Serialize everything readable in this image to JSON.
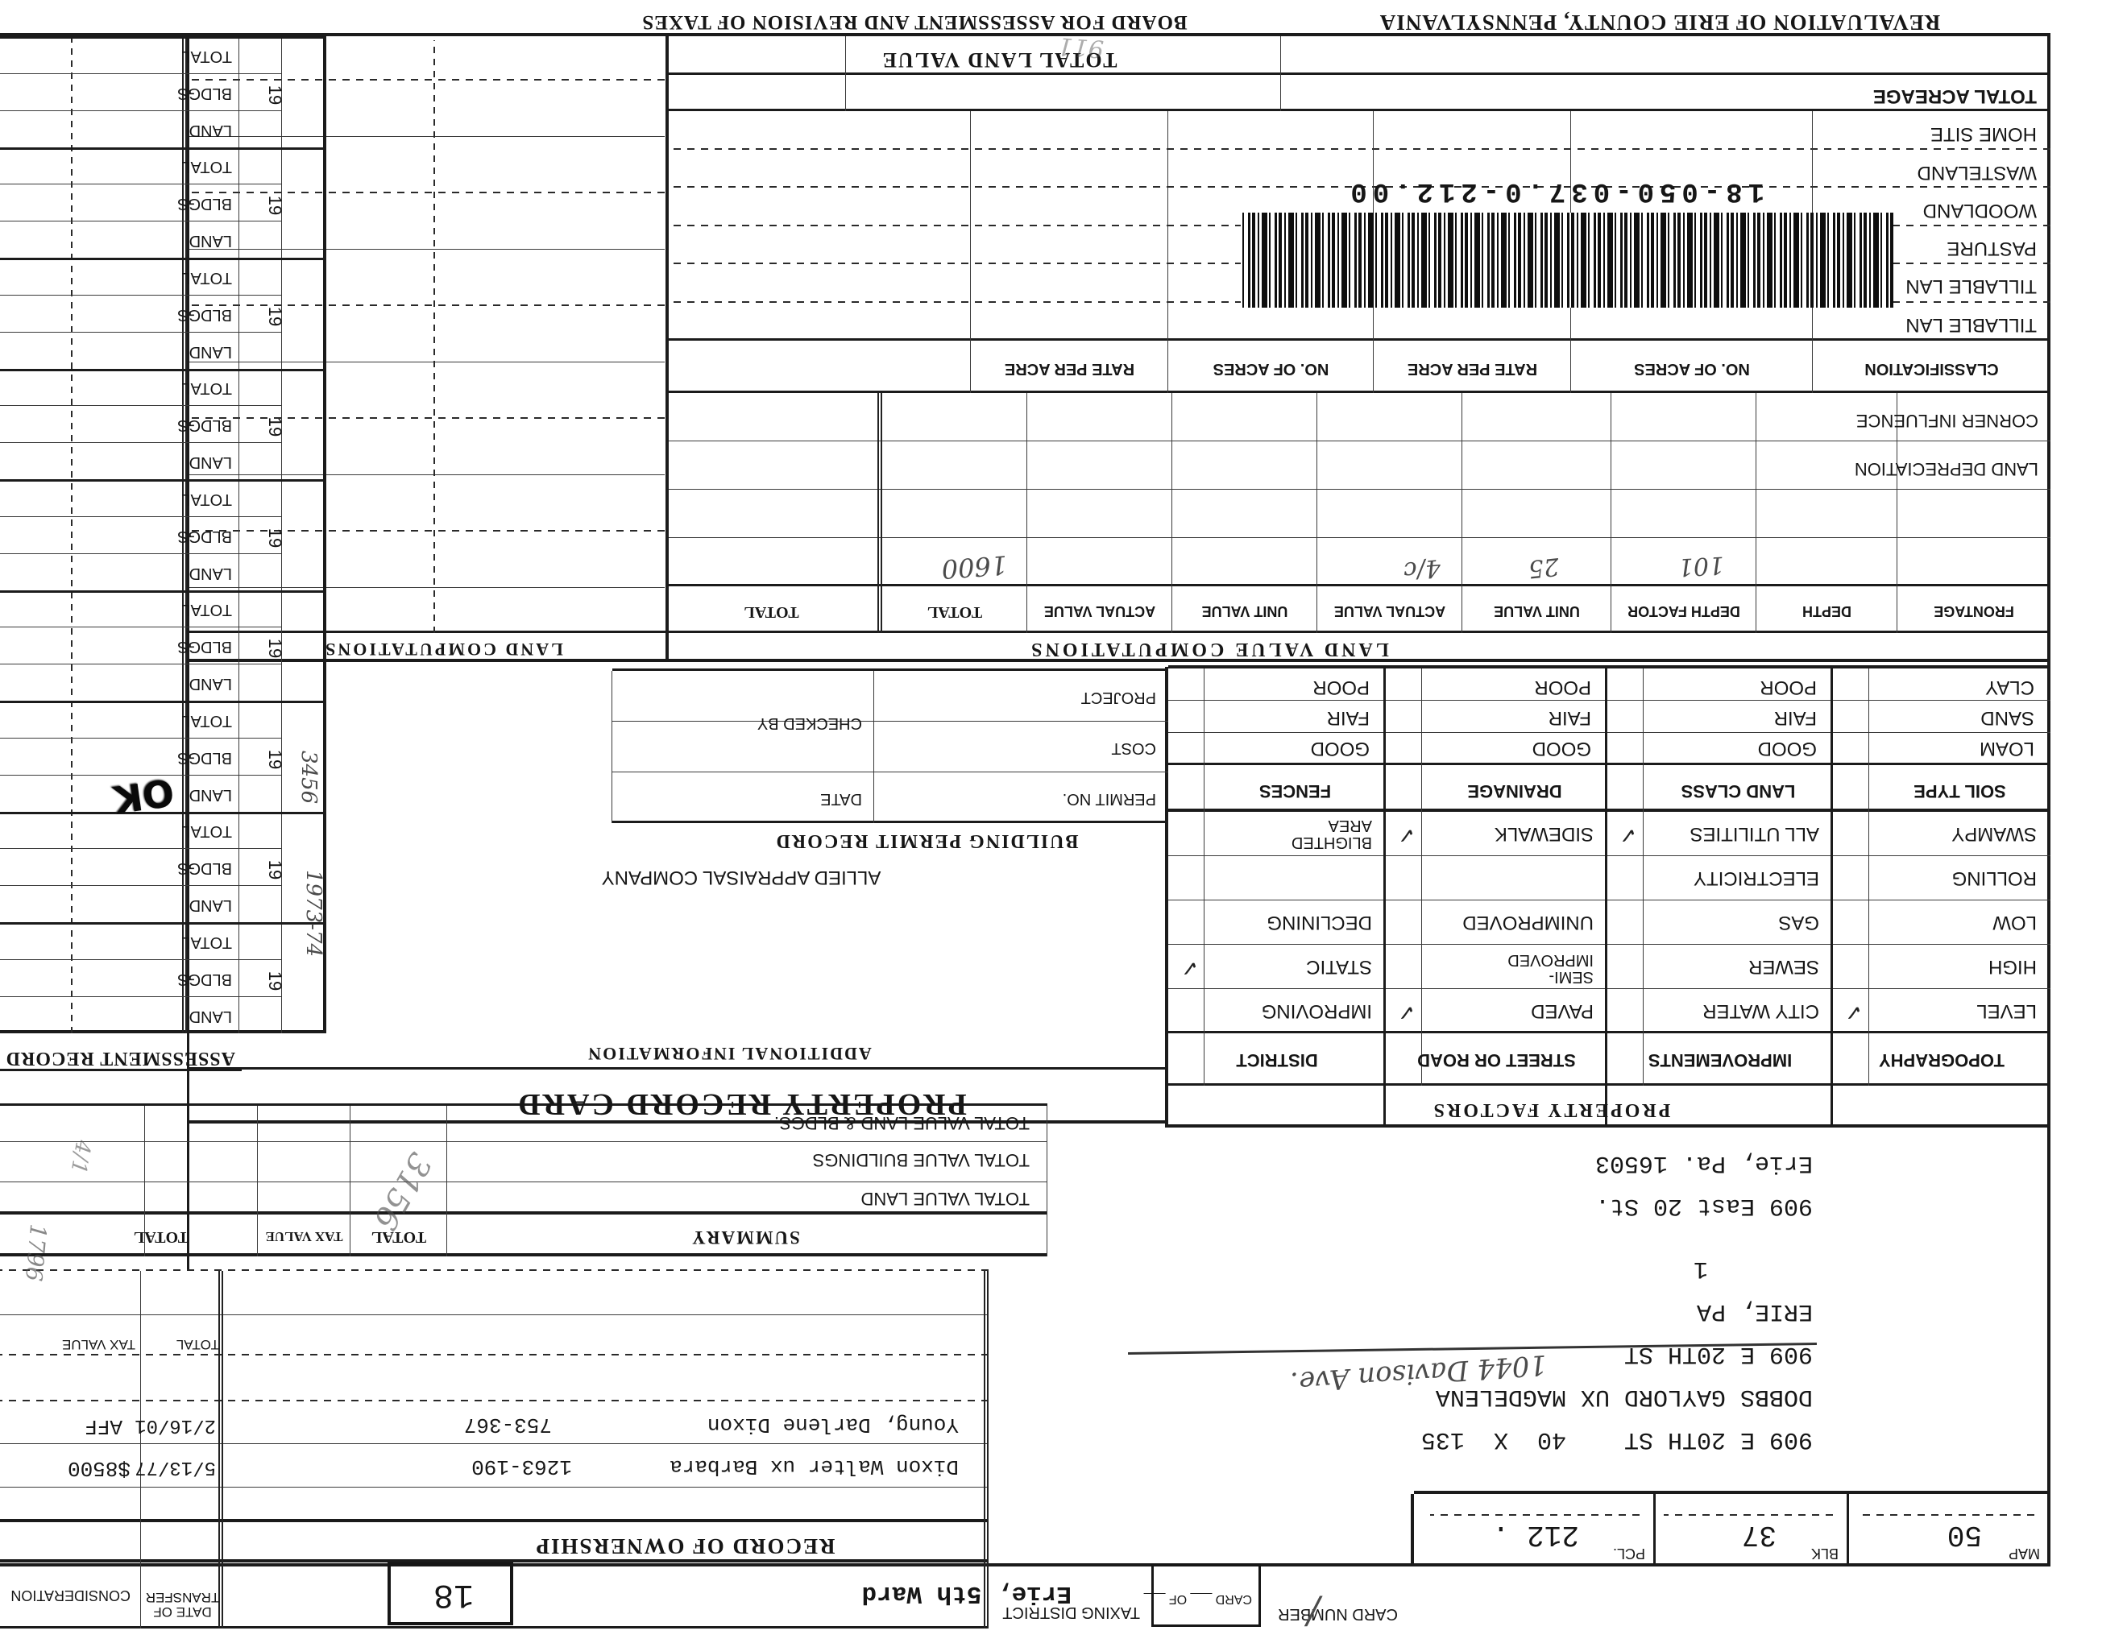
{
  "footer": {
    "left": "REVALUATION OF ERIE COUNTY, PENNSYLVANIA",
    "right": "BOARD FOR ASSESSMENT AND REVISION OF TAXES",
    "pencil_scribble": "911"
  },
  "top": {
    "card_number_label": "CARD NUMBER",
    "card_number_mark": "/",
    "card_label": "CARD",
    "of_label": "OF",
    "taxing_district_label": "TAXING DISTRICT",
    "taxing_district_value": "Erie, 5th Ward",
    "district_stamp": "18"
  },
  "parcel": {
    "map_label": "MAP",
    "map": "50",
    "blk_label": "BLK",
    "blk": "37",
    "pcl_label": "PCL.",
    "pcl": "212 ."
  },
  "owner": {
    "line1": "909 E 20TH ST    40  X  135",
    "line2": "DOBBS GAYLORD UX MAGDELENA",
    "line3": "909 E 20TH ST",
    "line3_note": "1044 Davison Ave.",
    "line4": "ERIE, PA",
    "line5": "1",
    "line6": "909 East 20 St.",
    "line7": "Erie, Pa. 16503"
  },
  "ownership": {
    "title": "RECORD OF OWNERSHIP",
    "date_label": "DATE OF\nTRANSFER",
    "consideration_label": "CONSIDERATION",
    "sub_total_label": "TOTAL",
    "sub_tax_label": "TAX VALUE",
    "rows": [
      {
        "name": "Dixon Walter ux Barbara",
        "book": "1263-190",
        "date": "5/13/77",
        "consideration": "$8500"
      },
      {
        "name": "Young, Darlene Dixon",
        "book": "753-367",
        "date": "2/16/01",
        "consideration": "AFF"
      }
    ]
  },
  "summary": {
    "title": "SUMMARY",
    "col_total": "TOTAL",
    "col_tax": "TAX VALUE",
    "col_total2": "TOTAL",
    "rows": [
      "TOTAL VALUE LAND",
      "TOTAL VALUE BUILDINGS",
      "TOTAL VALUE LAND & BLDGS."
    ],
    "pencil_total": "3156"
  },
  "factors": {
    "title": "PROPERTY FACTORS",
    "headers": [
      "TOPOGRAPHY",
      "IMPROVEMENTS",
      "STREET OR ROAD",
      "DISTRICT"
    ],
    "rows": [
      [
        {
          "l": "LEVEL",
          "c": "✓"
        },
        {
          "l": "CITY WATER",
          "c": ""
        },
        {
          "l": "PAVED",
          "c": "✓"
        },
        {
          "l": "IMPROVING",
          "c": ""
        }
      ],
      [
        {
          "l": "HIGH",
          "c": ""
        },
        {
          "l": "SEWER",
          "c": ""
        },
        {
          "l": "SEMI-\nIMPROVED",
          "c": ""
        },
        {
          "l": "STATIC",
          "c": "✓"
        }
      ],
      [
        {
          "l": "LOW",
          "c": ""
        },
        {
          "l": "GAS",
          "c": ""
        },
        {
          "l": "UNIMPROVED",
          "c": ""
        },
        {
          "l": "DECLINING",
          "c": ""
        }
      ],
      [
        {
          "l": "ROLLING",
          "c": ""
        },
        {
          "l": "ELECTRICITY",
          "c": ""
        },
        {
          "l": "",
          "c": ""
        },
        {
          "l": "",
          "c": ""
        }
      ],
      [
        {
          "l": "SWAMPY",
          "c": ""
        },
        {
          "l": "ALL UTILITIES",
          "c": "✓"
        },
        {
          "l": "SIDEWALK",
          "c": "✓"
        },
        {
          "l": "BLIGHTED\nAREA",
          "c": ""
        }
      ]
    ]
  },
  "soil": {
    "headers": [
      "SOIL TYPE",
      "LAND CLASS",
      "DRAINAGE",
      "FENCES"
    ],
    "rows": [
      [
        "LOAM",
        "GOOD",
        "GOOD",
        "GOOD"
      ],
      [
        "SAND",
        "FAIR",
        "FAIR",
        "FAIR"
      ],
      [
        "CLAY",
        "POOR",
        "POOR",
        "POOR"
      ]
    ]
  },
  "lvc": {
    "title": "LAND VALUE COMPUTATIONS",
    "headers": [
      "FRONTAGE",
      "DEPTH",
      "DEPTH FACTOR",
      "UNIT VALUE",
      "ACTUAL VALUE",
      "UNIT VALUE",
      "ACTUAL VALUE",
      "TOTAL",
      "TOTAL"
    ],
    "pencil": {
      "depth_factor": "101",
      "unit_value": "25",
      "actual_value": "4/c",
      "total": "1600"
    },
    "land_depreciation_label": "LAND DEPRECIATION",
    "corner_influence_label": "CORNER INFLUENCE"
  },
  "classification": {
    "headers": [
      "CLASSIFICATION",
      "NO. OF ACRES",
      "RATE PER ACRE",
      "NO. OF ACRES",
      "RATE PER ACRE"
    ]
  },
  "acreage": {
    "rows": [
      "TILLABLE LAN",
      "TILLABLE LAN",
      "PASTURE",
      "WOODLAND",
      "WASTELAND",
      "HOME SITE"
    ],
    "total_acreage_label": "TOTAL ACREAGE",
    "total_land_value_label": "TOTAL LAND VALUE"
  },
  "barcode": {
    "number": "18-050-037.0-212.00"
  },
  "info": {
    "prc_title": "PROPERTY RECORD CARD",
    "additional": "ADDITIONAL INFORMATION",
    "company": "ALLIED APPRAISAL COMPANY",
    "land_comp_title": "LAND COMPUTATIONS"
  },
  "permit": {
    "title": "BUILDING PERMIT RECORD",
    "rows_left": [
      "PERMIT NO.",
      "COST",
      "PROJECT"
    ],
    "rows_right": [
      "DATE",
      "CHECKED BY"
    ]
  },
  "assessment": {
    "title": "ASSESSMENT RECORD",
    "year_label": "19",
    "land_label": "LAND",
    "bldgs_label": "BLDGS",
    "total_label": "TOTAL",
    "pencil_year_a": "1973-74",
    "pencil_year_b": "3456",
    "stamp": "OK"
  },
  "margin_notes": {
    "a": "1796",
    "b": "4/1"
  }
}
